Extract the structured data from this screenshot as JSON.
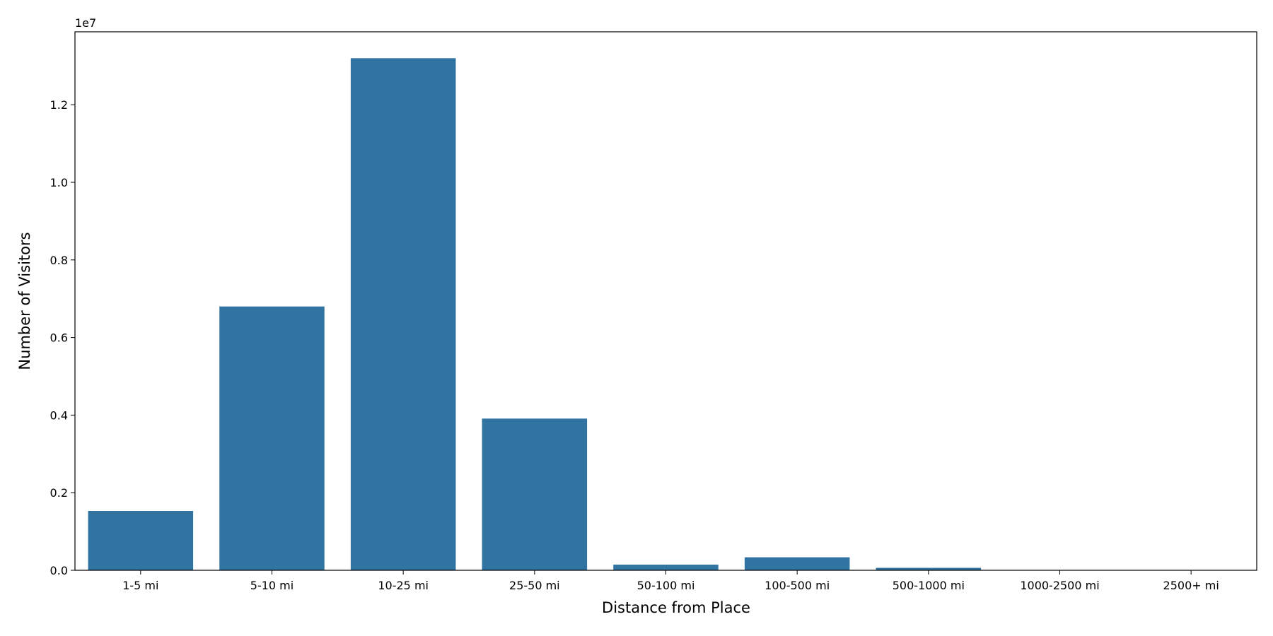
{
  "chart_data": {
    "type": "bar",
    "x_label": "Distance from Place",
    "y_label": "Number of Visitors",
    "y_offset_label": "1e7",
    "categories": [
      "1-5 mi",
      "5-10 mi",
      "10-25 mi",
      "25-50 mi",
      "50-100 mi",
      "100-500 mi",
      "500-1000 mi",
      "1000-2500 mi",
      "2500+ mi"
    ],
    "values": [
      1530000,
      6800000,
      13200000,
      3910000,
      146000,
      335000,
      63000,
      8000,
      3000
    ],
    "color": "#3274a1",
    "ylim": [
      0,
      13880000
    ],
    "yticks": [
      {
        "value": 0,
        "label": "0.0"
      },
      {
        "value": 2000000,
        "label": "0.2"
      },
      {
        "value": 4000000,
        "label": "0.4"
      },
      {
        "value": 6000000,
        "label": "0.6"
      },
      {
        "value": 8000000,
        "label": "0.8"
      },
      {
        "value": 10000000,
        "label": "1.0"
      },
      {
        "value": 12000000,
        "label": "1.2"
      }
    ],
    "grid": false
  }
}
